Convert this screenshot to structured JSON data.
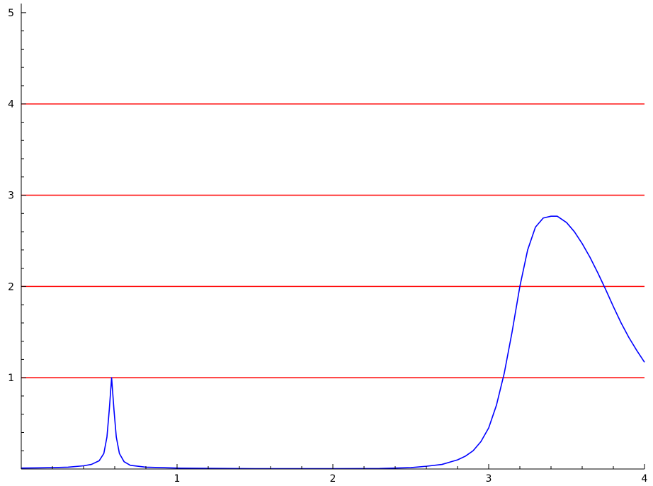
{
  "chart_data": {
    "type": "line",
    "title": "",
    "xlabel": "",
    "ylabel": "",
    "xlim": [
      0,
      4
    ],
    "ylim": [
      0,
      5.1
    ],
    "grid": false,
    "x_ticks": [
      {
        "value": 1,
        "label": "1"
      },
      {
        "value": 2,
        "label": "2"
      },
      {
        "value": 3,
        "label": "3"
      },
      {
        "value": 4,
        "label": "4"
      }
    ],
    "y_ticks": [
      {
        "value": 1,
        "label": "1"
      },
      {
        "value": 2,
        "label": "2"
      },
      {
        "value": 3,
        "label": "3"
      },
      {
        "value": 4,
        "label": "4"
      },
      {
        "value": 5,
        "label": "5"
      }
    ],
    "hlines": [
      {
        "y": 1,
        "color": "#ff0000"
      },
      {
        "y": 2,
        "color": "#ff0000"
      },
      {
        "y": 3,
        "color": "#ff0000"
      },
      {
        "y": 4,
        "color": "#ff0000"
      }
    ],
    "series": [
      {
        "color": "#0000ff",
        "x": [
          0.0,
          0.1,
          0.2,
          0.3,
          0.4,
          0.45,
          0.5,
          0.53,
          0.55,
          0.565,
          0.58,
          0.595,
          0.61,
          0.63,
          0.66,
          0.7,
          0.8,
          1.0,
          1.5,
          2.0,
          2.3,
          2.5,
          2.6,
          2.7,
          2.8,
          2.85,
          2.9,
          2.95,
          3.0,
          3.05,
          3.1,
          3.15,
          3.2,
          3.25,
          3.3,
          3.35,
          3.4,
          3.44,
          3.5,
          3.55,
          3.6,
          3.65,
          3.7,
          3.75,
          3.8,
          3.85,
          3.9,
          3.95,
          4.0
        ],
        "y": [
          0.01,
          0.012,
          0.015,
          0.02,
          0.035,
          0.05,
          0.09,
          0.17,
          0.35,
          0.65,
          1.0,
          0.65,
          0.35,
          0.17,
          0.08,
          0.04,
          0.02,
          0.01,
          0.003,
          0.003,
          0.005,
          0.015,
          0.03,
          0.05,
          0.1,
          0.14,
          0.2,
          0.3,
          0.45,
          0.7,
          1.05,
          1.5,
          2.0,
          2.4,
          2.65,
          2.75,
          2.77,
          2.77,
          2.7,
          2.6,
          2.47,
          2.32,
          2.15,
          1.97,
          1.78,
          1.6,
          1.44,
          1.3,
          1.17
        ]
      }
    ]
  }
}
